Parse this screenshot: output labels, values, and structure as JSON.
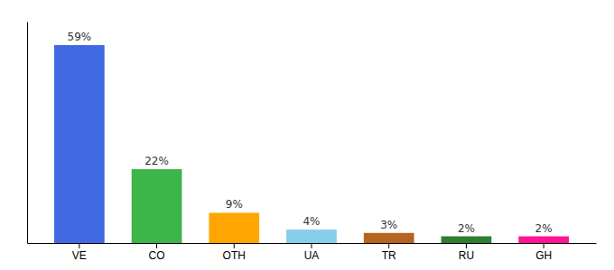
{
  "chart_data": {
    "type": "bar",
    "categories": [
      "VE",
      "CO",
      "OTH",
      "UA",
      "TR",
      "RU",
      "GH"
    ],
    "values": [
      59,
      22,
      9,
      4,
      3,
      2,
      2
    ],
    "value_labels": [
      "59%",
      "22%",
      "9%",
      "4%",
      "3%",
      "2%",
      "2%"
    ],
    "colors": [
      "#4169e1",
      "#3cb54a",
      "#ffa500",
      "#87ceeb",
      "#b5651d",
      "#2e7d32",
      "#ff1493"
    ],
    "ylim": [
      0,
      66
    ],
    "yticks": [],
    "grid": false,
    "data_labels": true,
    "tick_labels": "x"
  }
}
